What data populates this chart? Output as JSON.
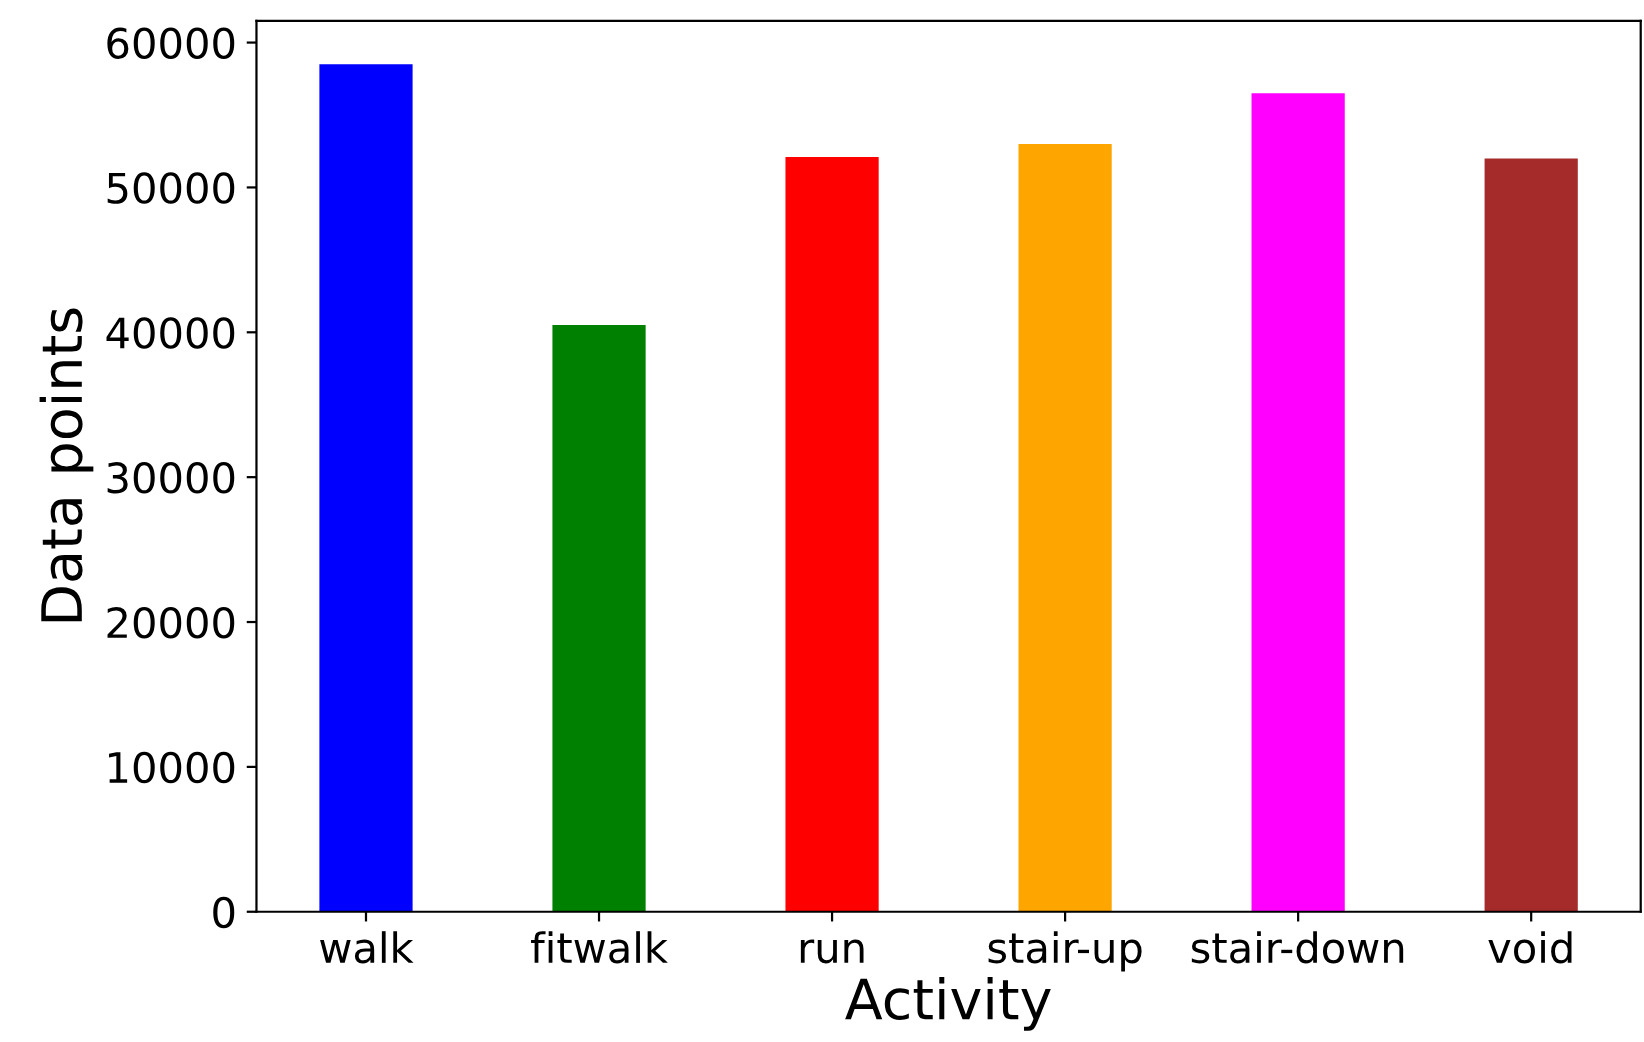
{
  "chart_data": {
    "type": "bar",
    "xlabel": "Activity",
    "ylabel": "Data points",
    "categories": [
      "walk",
      "fitwalk",
      "run",
      "stair-up",
      "stair-down",
      "void"
    ],
    "values": [
      58500,
      40500,
      52100,
      53000,
      56500,
      52000
    ],
    "colors": [
      "#0000ff",
      "#008000",
      "#ff0000",
      "#ffa500",
      "#ff00ff",
      "#a52a2a"
    ],
    "ylim": [
      0,
      61500
    ],
    "yticks": [
      0,
      10000,
      20000,
      30000,
      40000,
      50000,
      60000
    ],
    "grid": false,
    "legend": false
  }
}
